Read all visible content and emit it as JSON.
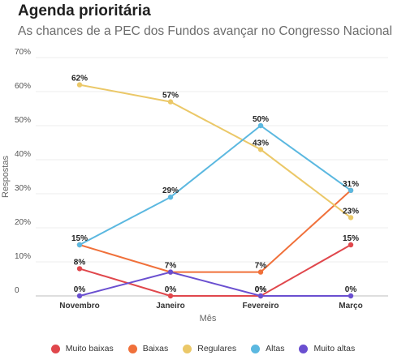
{
  "header": {
    "title": "Agenda prioritária",
    "subtitle": "As chances de a PEC dos Fundos avançar no Congresso Nacional"
  },
  "chart_data": {
    "type": "line",
    "title": "Agenda prioritária",
    "subtitle": "As chances de a PEC dos Fundos avançar no Congresso Nacional",
    "xlabel": "Mês",
    "ylabel": "Respostas",
    "categories": [
      "Novembro",
      "Janeiro",
      "Fevereiro",
      "Março"
    ],
    "ylim": [
      0,
      70
    ],
    "yticks": [
      0,
      10,
      20,
      30,
      40,
      50,
      60,
      70
    ],
    "ytick_labels": [
      "0",
      "10%",
      "20%",
      "30%",
      "40%",
      "50%",
      "60%",
      "70%"
    ],
    "grid": true,
    "legend_position": "bottom",
    "series": [
      {
        "name": "Muito baixas",
        "color": "#e0474c",
        "values": [
          8,
          0,
          0,
          15
        ],
        "labels": [
          "8%",
          "0%",
          "0%",
          "15%"
        ]
      },
      {
        "name": "Baixas",
        "color": "#f0703a",
        "values": [
          15,
          7,
          7,
          31
        ],
        "labels": [
          null,
          null,
          "7%",
          null
        ]
      },
      {
        "name": "Regulares",
        "color": "#ebc868",
        "values": [
          62,
          57,
          43,
          23
        ],
        "labels": [
          "62%",
          "57%",
          "43%",
          "23%"
        ]
      },
      {
        "name": "Altas",
        "color": "#5bb8e0",
        "values": [
          15,
          29,
          50,
          31
        ],
        "labels": [
          "15%",
          "29%",
          "50%",
          "31%"
        ]
      },
      {
        "name": "Muito altas",
        "color": "#6a4fd0",
        "values": [
          0,
          7,
          0,
          0
        ],
        "labels": [
          "0%",
          "7%",
          "0%",
          "0%"
        ]
      }
    ]
  }
}
